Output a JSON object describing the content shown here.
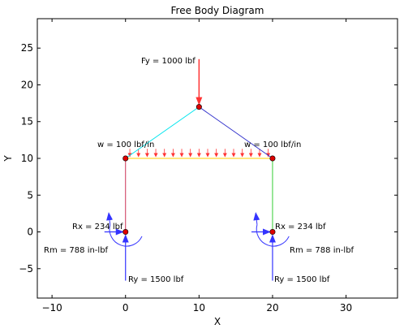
{
  "chart_data": {
    "type": "diagram",
    "title": "Free Body Diagram",
    "xlabel": "X",
    "ylabel": "Y",
    "xlim": [
      -12,
      37
    ],
    "ylim": [
      -9,
      29
    ],
    "xticks": [
      -10,
      0,
      10,
      20,
      30
    ],
    "yticks": [
      -5,
      0,
      5,
      10,
      15,
      20,
      25
    ],
    "xtick_labels": [
      "−10",
      "0",
      "10",
      "20",
      "30"
    ],
    "ytick_labels": [
      "−5",
      "0",
      "5",
      "10",
      "15",
      "20",
      "25"
    ],
    "grid": false,
    "members": [
      {
        "from": [
          0,
          0
        ],
        "to": [
          0,
          10
        ],
        "color": "#cc3355"
      },
      {
        "from": [
          20,
          0
        ],
        "to": [
          20,
          10
        ],
        "color": "#33cc33"
      },
      {
        "from": [
          0,
          10
        ],
        "to": [
          20,
          10
        ],
        "color": "#ffcc00"
      },
      {
        "from": [
          0,
          10
        ],
        "to": [
          10,
          17
        ],
        "color": "#00e5ee"
      },
      {
        "from": [
          10,
          17
        ],
        "to": [
          20,
          10
        ],
        "color": "#3333cc"
      }
    ],
    "nodes": [
      [
        0,
        0
      ],
      [
        0,
        10
      ],
      [
        10,
        17
      ],
      [
        20,
        10
      ],
      [
        20,
        0
      ]
    ],
    "node_color": "#dd0000",
    "point_load": {
      "at": [
        10,
        17
      ],
      "tail_y": 23.5,
      "color": "#ff3333",
      "label": "Fy = 1000 lbf"
    },
    "distributed_load": {
      "x_start": 0,
      "x_end": 20,
      "y": 10,
      "arrow_top": 11.3,
      "count": 17,
      "color": "#ff3333",
      "labels": [
        "w = 100 lbf/in",
        "w = 100 lbf/in"
      ]
    },
    "supports": [
      {
        "at": [
          0,
          0
        ],
        "rx_label": "Rx = 234 lbf",
        "ry_label": "Ry = 1500 lbf",
        "rm_label": "Rm = 788 in-lbf"
      },
      {
        "at": [
          20,
          0
        ],
        "rx_label": "Rx = 234 lbf",
        "ry_label": "Ry = 1500 lbf",
        "rm_label": "Rm = 788 in-lbf"
      }
    ],
    "reaction_color": "#3333ff"
  }
}
